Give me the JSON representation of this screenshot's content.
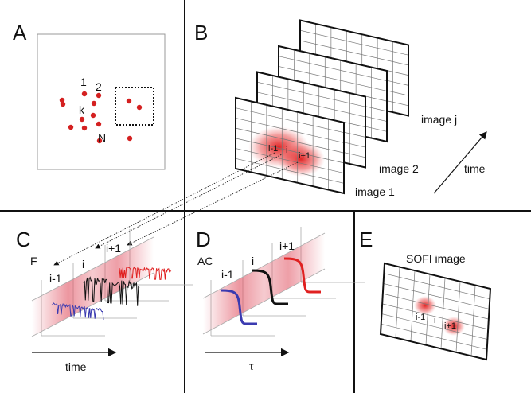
{
  "panels": {
    "a": {
      "letter": "A",
      "labels": [
        "1",
        "2",
        "k",
        "N"
      ]
    },
    "b": {
      "letter": "B",
      "frames": [
        "image 1",
        "image 2",
        "image j"
      ],
      "time_label": "time",
      "pixels": [
        "i-1",
        "i",
        "i+1"
      ]
    },
    "c": {
      "letter": "C",
      "axis": "F",
      "traces": [
        "i-1",
        "i",
        "i+1"
      ],
      "time_label": "time"
    },
    "d": {
      "letter": "D",
      "axis": "AC",
      "traces": [
        "i-1",
        "i",
        "i+1"
      ],
      "lag_label": "τ"
    },
    "e": {
      "letter": "E",
      "title": "SOFI image",
      "pixels": [
        "i-1",
        "i",
        "i+1"
      ]
    }
  },
  "colors": {
    "dot": "#d42020",
    "trace_i_minus_1": "#3a3ab0",
    "trace_i": "#111111",
    "trace_i_plus_1": "#e02020",
    "band": "#e05060"
  }
}
